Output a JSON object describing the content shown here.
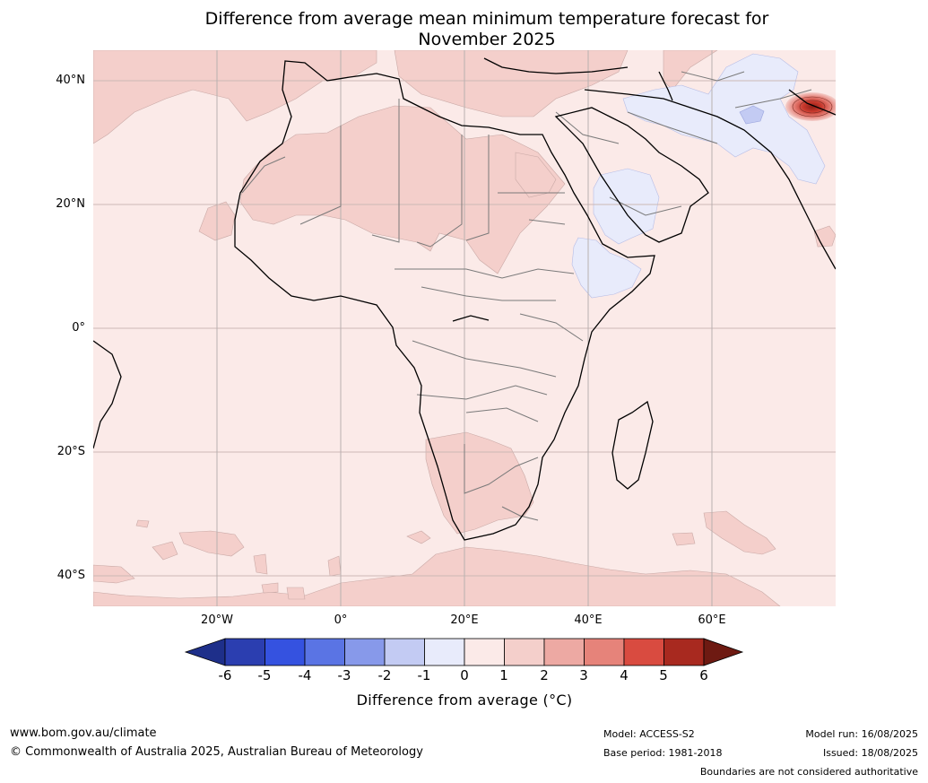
{
  "title_line1": "Difference from average mean minimum temperature forecast for",
  "title_line2": "November 2025",
  "lat_labels": [
    "40°N",
    "20°N",
    "0°",
    "20°S",
    "40°S"
  ],
  "lon_labels": [
    "20°W",
    "0°",
    "20°E",
    "40°E",
    "60°E"
  ],
  "colorbar": {
    "ticks": [
      "-6",
      "-5",
      "-4",
      "-3",
      "-2",
      "-1",
      "0",
      "1",
      "2",
      "3",
      "4",
      "5",
      "6"
    ],
    "label": "Difference from average (°C)",
    "colors": [
      "#1e2f8a",
      "#2b3eb0",
      "#3552e0",
      "#5a74e4",
      "#8799ea",
      "#c3cbf3",
      "#e8ebfb",
      "#fbeae8",
      "#f4cfcb",
      "#eda9a3",
      "#e6837a",
      "#d94b40",
      "#a8291f",
      "#6e1a12"
    ]
  },
  "footer": {
    "website": "www.bom.gov.au/climate",
    "copyright": "© Commonwealth of Australia 2025, Australian Bureau of Meteorology",
    "model": "Model: ACCESS-S2",
    "base_period": "Base period: 1981-2018",
    "model_run": "Model run: 16/08/2025",
    "issued": "Issued: 18/08/2025",
    "disclaimer": "Boundaries are not considered authoritative"
  }
}
